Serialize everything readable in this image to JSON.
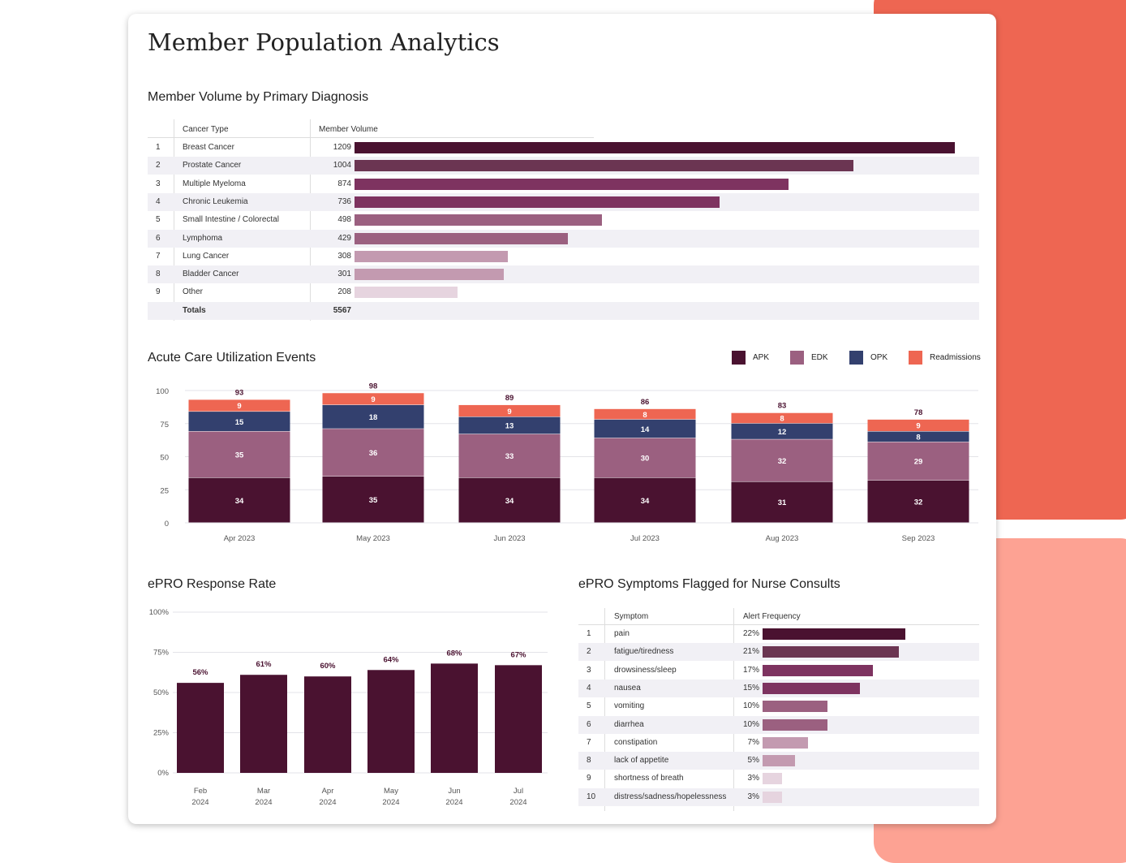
{
  "title": "Member Population Analytics",
  "volume": {
    "heading": "Member Volume by Primary Diagnosis",
    "col_type": "Cancer Type",
    "col_volume": "Member Volume",
    "rows": [
      {
        "idx": "1",
        "name": "Breast Cancer",
        "value": 1209,
        "color": "#4a1230"
      },
      {
        "idx": "2",
        "name": "Prostate Cancer",
        "value": 1004,
        "color": "#6b3552"
      },
      {
        "idx": "3",
        "name": "Multiple Myeloma",
        "value": 874,
        "color": "#7e3360"
      },
      {
        "idx": "4",
        "name": "Chronic Leukemia",
        "value": 736,
        "color": "#7e3360"
      },
      {
        "idx": "5",
        "name": "Small Intestine / Colorectal",
        "value": 498,
        "color": "#9b6080"
      },
      {
        "idx": "6",
        "name": "Lymphoma",
        "value": 429,
        "color": "#9b6080"
      },
      {
        "idx": "7",
        "name": "Lung Cancer",
        "value": 308,
        "color": "#c39ab0"
      },
      {
        "idx": "8",
        "name": "Bladder Cancer",
        "value": 301,
        "color": "#c39ab0"
      },
      {
        "idx": "9",
        "name": "Other",
        "value": 208,
        "color": "#e6d4df"
      }
    ],
    "totals_label": "Totals",
    "totals_value": "5567"
  },
  "acute": {
    "heading": "Acute Care Utilization Events",
    "legend": [
      {
        "name": "APK",
        "color": "#4a1230"
      },
      {
        "name": "EDK",
        "color": "#9b6080"
      },
      {
        "name": "OPK",
        "color": "#33406e"
      },
      {
        "name": "Readmissions",
        "color": "#ee6652"
      }
    ]
  },
  "epro": {
    "heading": "ePRO Response Rate"
  },
  "symptoms": {
    "heading": "ePRO Symptoms Flagged for Nurse Consults",
    "col_symptom": "Symptom",
    "col_freq": "Alert Frequency",
    "rows": [
      {
        "idx": "1",
        "name": "pain",
        "value": 22,
        "label": "22%",
        "color": "#4a1230"
      },
      {
        "idx": "2",
        "name": "fatigue/tiredness",
        "value": 21,
        "label": "21%",
        "color": "#6b3552"
      },
      {
        "idx": "3",
        "name": "drowsiness/sleep",
        "value": 17,
        "label": "17%",
        "color": "#7e3360"
      },
      {
        "idx": "4",
        "name": "nausea",
        "value": 15,
        "label": "15%",
        "color": "#7e3360"
      },
      {
        "idx": "5",
        "name": "vomiting",
        "value": 10,
        "label": "10%",
        "color": "#9b6080"
      },
      {
        "idx": "6",
        "name": "diarrhea",
        "value": 10,
        "label": "10%",
        "color": "#9b6080"
      },
      {
        "idx": "7",
        "name": "constipation",
        "value": 7,
        "label": "7%",
        "color": "#c39ab0"
      },
      {
        "idx": "8",
        "name": "lack of appetite",
        "value": 5,
        "label": "5%",
        "color": "#c39ab0"
      },
      {
        "idx": "9",
        "name": "shortness of breath",
        "value": 3,
        "label": "3%",
        "color": "#e6d4df"
      },
      {
        "idx": "10",
        "name": "distress/sadness/hopelessness",
        "value": 3,
        "label": "3%",
        "color": "#e6d4df"
      }
    ]
  },
  "chart_data": [
    {
      "type": "bar",
      "stacked": true,
      "title": "Acute Care Utilization Events",
      "categories": [
        "Apr 2023",
        "May 2023",
        "Jun 2023",
        "Jul 2023",
        "Aug 2023",
        "Sep 2023"
      ],
      "series": [
        {
          "name": "APK",
          "values": [
            34,
            35,
            34,
            34,
            31,
            32
          ]
        },
        {
          "name": "EDK",
          "values": [
            35,
            36,
            33,
            30,
            32,
            29
          ]
        },
        {
          "name": "OPK",
          "values": [
            15,
            18,
            13,
            14,
            12,
            8
          ]
        },
        {
          "name": "Readmissions",
          "values": [
            9,
            9,
            9,
            8,
            8,
            9
          ]
        }
      ],
      "totals": [
        93,
        98,
        89,
        86,
        83,
        78
      ],
      "yticks": [
        0,
        25,
        50,
        75,
        100
      ],
      "ylim": [
        0,
        100
      ],
      "legend": "top-right",
      "grid": true
    },
    {
      "type": "bar",
      "title": "ePRO Response Rate",
      "categories": [
        [
          "Feb",
          "2024"
        ],
        [
          "Mar",
          "2024"
        ],
        [
          "Apr",
          "2024"
        ],
        [
          "May",
          "2024"
        ],
        [
          "Jun",
          "2024"
        ],
        [
          "Jul",
          "2024"
        ]
      ],
      "values": [
        56,
        61,
        60,
        64,
        68,
        67
      ],
      "labels": [
        "56%",
        "61%",
        "60%",
        "64%",
        "68%",
        "67%"
      ],
      "yticks": [
        "0%",
        "25%",
        "50%",
        "75%",
        "100%"
      ],
      "ylim": [
        0,
        100
      ],
      "grid": true
    }
  ]
}
